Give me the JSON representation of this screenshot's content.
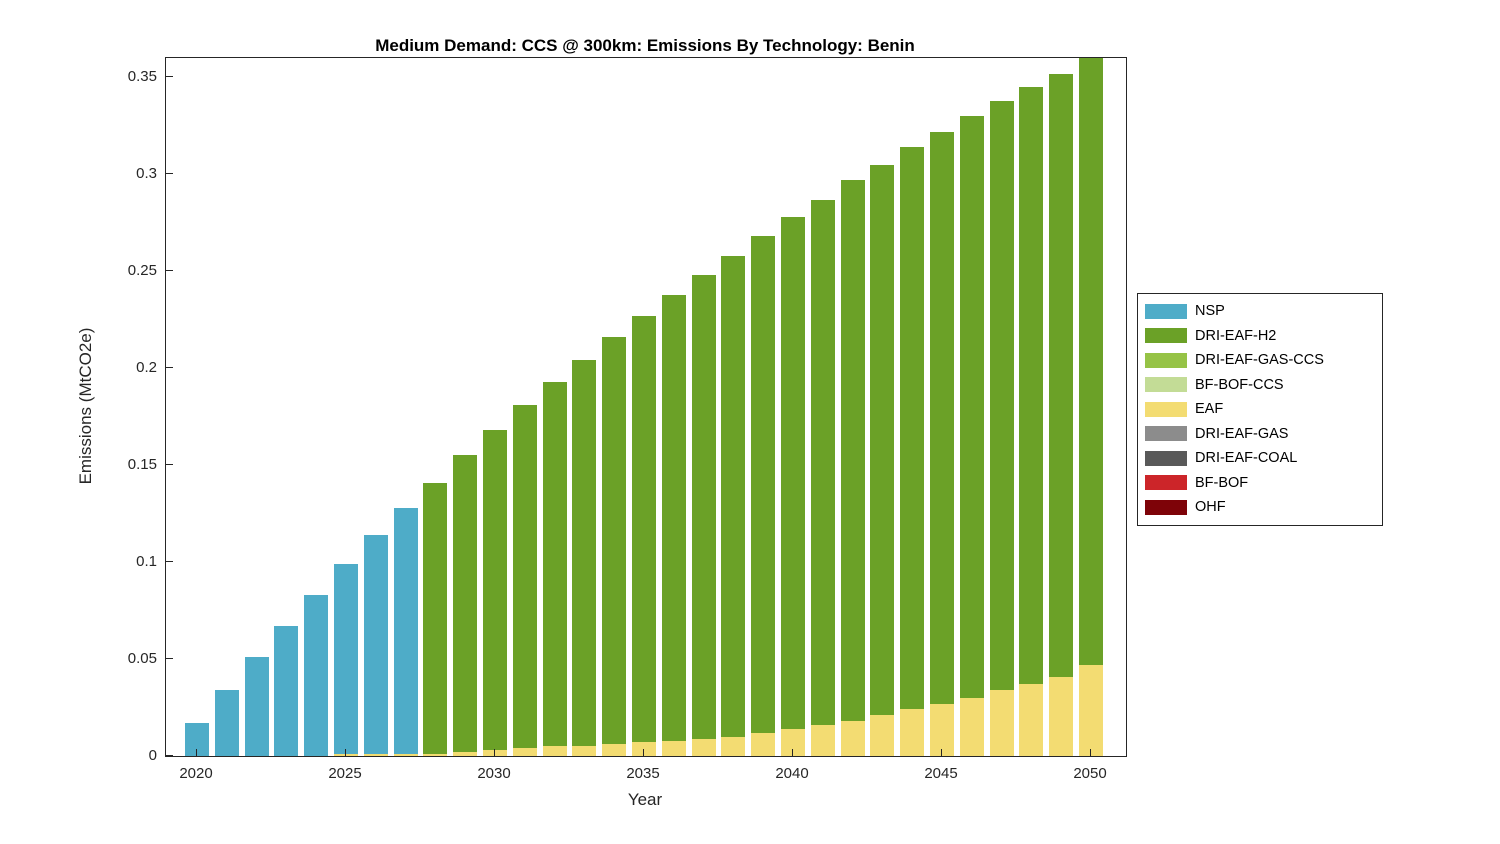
{
  "chart_data": {
    "type": "bar",
    "stacked": true,
    "title": "Medium Demand: CCS @ 300km: Emissions By Technology: Benin",
    "xlabel": "Year",
    "ylabel": "Emissions (MtCO2e)",
    "ylim": [
      0,
      0.36
    ],
    "grid": false,
    "legend_position": "right-outside",
    "years": [
      2020,
      2021,
      2022,
      2023,
      2024,
      2025,
      2026,
      2027,
      2028,
      2029,
      2030,
      2031,
      2032,
      2033,
      2034,
      2035,
      2036,
      2037,
      2038,
      2039,
      2040,
      2041,
      2042,
      2043,
      2044,
      2045,
      2046,
      2047,
      2048,
      2049,
      2050
    ],
    "xticks": [
      2020,
      2025,
      2030,
      2035,
      2040,
      2045,
      2050
    ],
    "xtick_labels": [
      "2020",
      "2025",
      "2030",
      "2035",
      "2040",
      "2045",
      "2050"
    ],
    "yticks": [
      0,
      0.05,
      0.1,
      0.15,
      0.2,
      0.25,
      0.3,
      0.35
    ],
    "ytick_labels": [
      "0",
      "0.05",
      "0.1",
      "0.15",
      "0.2",
      "0.25",
      "0.3",
      "0.35"
    ],
    "stack_order": [
      "EAF",
      "NSP",
      "DRI-EAF-H2"
    ],
    "series": [
      {
        "name": "NSP",
        "color": "#4EACC8",
        "values": [
          0.017,
          0.034,
          0.051,
          0.067,
          0.083,
          0.098,
          0.113,
          0.127,
          0,
          0,
          0,
          0,
          0,
          0,
          0,
          0,
          0,
          0,
          0,
          0,
          0,
          0,
          0,
          0,
          0,
          0,
          0,
          0,
          0,
          0,
          0
        ]
      },
      {
        "name": "DRI-EAF-H2",
        "color": "#6BA127",
        "values": [
          0,
          0,
          0,
          0,
          0,
          0,
          0,
          0,
          0.14,
          0.153,
          0.165,
          0.177,
          0.188,
          0.199,
          0.21,
          0.22,
          0.23,
          0.239,
          0.248,
          0.256,
          0.264,
          0.271,
          0.279,
          0.284,
          0.29,
          0.295,
          0.3,
          0.304,
          0.308,
          0.311,
          0.313
        ]
      },
      {
        "name": "EAF",
        "color": "#F3DC72",
        "values": [
          0,
          0,
          0,
          0,
          0,
          0.001,
          0.001,
          0.001,
          0.001,
          0.002,
          0.003,
          0.004,
          0.005,
          0.005,
          0.006,
          0.007,
          0.008,
          0.009,
          0.01,
          0.012,
          0.014,
          0.016,
          0.018,
          0.021,
          0.024,
          0.027,
          0.03,
          0.034,
          0.037,
          0.041,
          0.047
        ]
      }
    ],
    "legend": [
      {
        "label": "NSP",
        "color": "#4EACC8"
      },
      {
        "label": "DRI-EAF-H2",
        "color": "#6BA127"
      },
      {
        "label": "DRI-EAF-GAS-CCS",
        "color": "#96C346"
      },
      {
        "label": "BF-BOF-CCS",
        "color": "#C3DC96"
      },
      {
        "label": "EAF",
        "color": "#F3DC72"
      },
      {
        "label": "DRI-EAF-GAS",
        "color": "#8C8C8C"
      },
      {
        "label": "DRI-EAF-COAL",
        "color": "#595959"
      },
      {
        "label": "BF-BOF",
        "color": "#CC2529"
      },
      {
        "label": "OHF",
        "color": "#7E0308"
      }
    ]
  }
}
